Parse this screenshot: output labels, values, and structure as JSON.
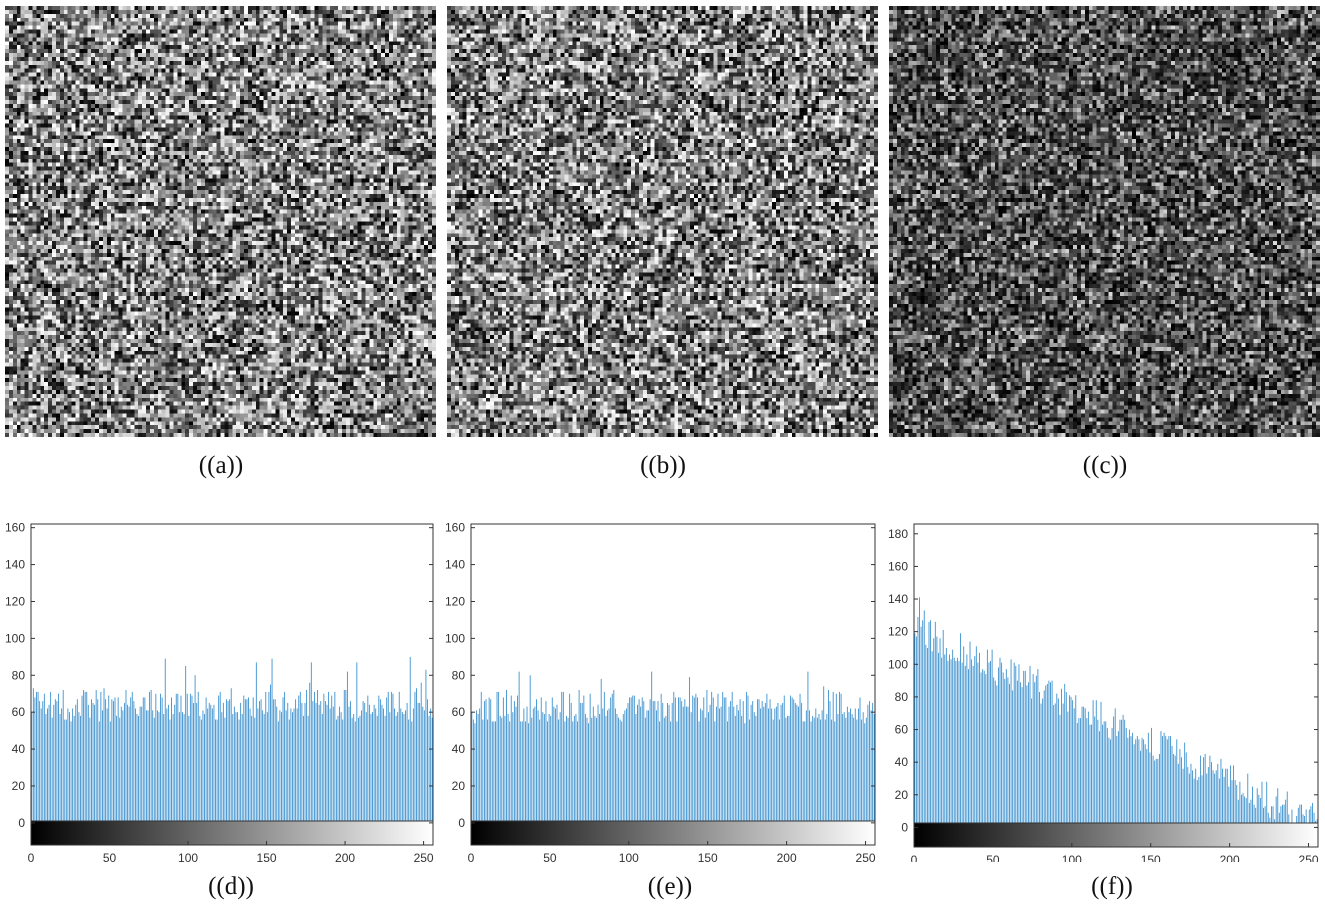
{
  "captions": {
    "a": "((a))",
    "b": "((b))",
    "c": "((c))",
    "d": "((d))",
    "e": "((e))",
    "f": "((f))"
  },
  "noise_images": {
    "a": {
      "grid": 110,
      "mean": 140,
      "spread": 115
    },
    "b": {
      "grid": 110,
      "mean": 138,
      "spread": 115
    },
    "c": {
      "grid": 110,
      "mean": 80,
      "spread": 100,
      "skew": "dark"
    }
  },
  "colors": {
    "bar": "#3e92cf",
    "frame": "#333333"
  },
  "chart_data": [
    {
      "type": "bar",
      "title": "",
      "xlabel": "",
      "ylabel": "",
      "xlim": [
        0,
        256
      ],
      "ylim": [
        -12,
        162
      ],
      "yticks": [
        0,
        20,
        40,
        60,
        80,
        100,
        120,
        140,
        160
      ],
      "xticks": [
        0,
        50,
        100,
        150,
        200,
        250
      ],
      "colorbar": "grayscale",
      "distribution": "uniform",
      "bins": 256,
      "mean": 64,
      "range": [
        52,
        90
      ]
    },
    {
      "type": "bar",
      "title": "",
      "xlabel": "",
      "ylabel": "",
      "xlim": [
        0,
        256
      ],
      "ylim": [
        -12,
        162
      ],
      "yticks": [
        0,
        20,
        40,
        60,
        80,
        100,
        120,
        140,
        160
      ],
      "xticks": [
        0,
        50,
        100,
        150,
        200,
        250
      ],
      "colorbar": "grayscale",
      "distribution": "uniform",
      "bins": 256,
      "mean": 63,
      "range": [
        48,
        82
      ]
    },
    {
      "type": "bar",
      "title": "",
      "xlabel": "",
      "ylabel": "",
      "xlim": [
        0,
        256
      ],
      "ylim": [
        -12,
        186
      ],
      "yticks": [
        0,
        20,
        40,
        60,
        80,
        100,
        120,
        140,
        160,
        180
      ],
      "xticks": [
        0,
        50,
        100,
        150,
        200,
        250
      ],
      "colorbar": "grayscale",
      "distribution": "linear-decreasing",
      "bins": 256,
      "start": 122,
      "end": 3,
      "peak": 141
    }
  ]
}
